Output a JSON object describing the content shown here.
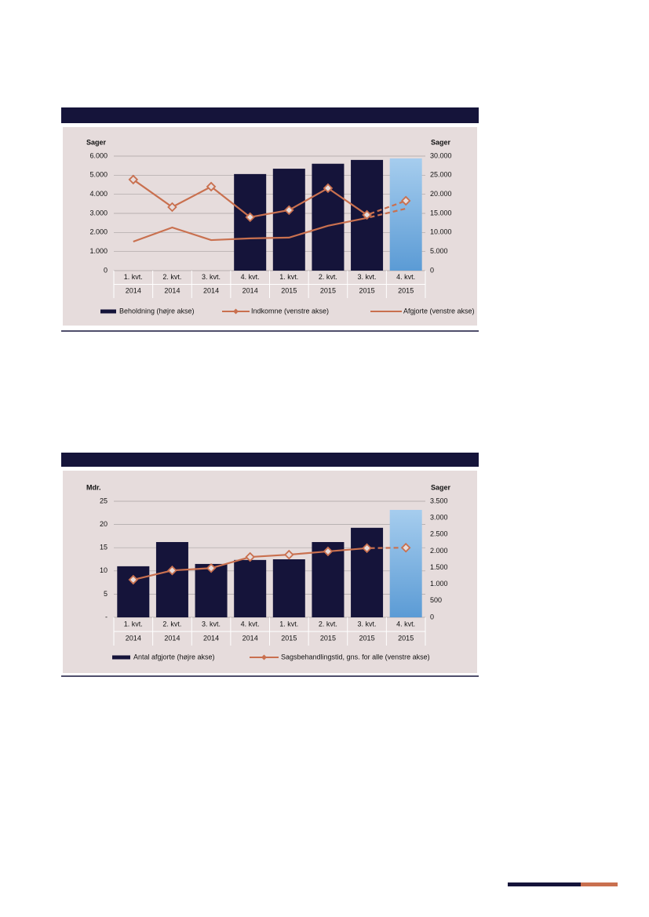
{
  "chart_data": [
    {
      "type": "bar_line",
      "categories": [
        [
          "1. kvt.",
          "2014"
        ],
        [
          "2. kvt.",
          "2014"
        ],
        [
          "3. kvt.",
          "2014"
        ],
        [
          "4. kvt.",
          "2014"
        ],
        [
          "1. kvt.",
          "2015"
        ],
        [
          "2. kvt.",
          "2015"
        ],
        [
          "3. kvt.",
          "2015"
        ],
        [
          "4. kvt.",
          "2015"
        ]
      ],
      "ylabel": "Sager",
      "y2label": "Sager",
      "ylim": [
        0,
        6000
      ],
      "yticks": [
        0,
        {
          "value": 1000,
          "label": "1.000"
        },
        {
          "value": 2000,
          "label": "2.000"
        },
        {
          "value": 3000,
          "label": "3.000"
        },
        {
          "value": 4000,
          "label": "4.000"
        },
        {
          "value": 5000,
          "label": "5.000"
        },
        {
          "value": 6000,
          "label": "6.000"
        }
      ],
      "y2lim": [
        0,
        30000
      ],
      "y2ticks": [
        0,
        {
          "value": 5000,
          "label": "5.000"
        },
        {
          "value": 10000,
          "label": "10.000"
        },
        {
          "value": 15000,
          "label": "15.000"
        },
        {
          "value": 20000,
          "label": "20.000"
        },
        {
          "value": 25000,
          "label": "25.000"
        },
        {
          "value": 30000,
          "label": "30.000"
        }
      ],
      "grid": true,
      "series": [
        {
          "name": "Beholdning (højre akse)",
          "type": "bar",
          "axis": "y2",
          "color": "#15143a",
          "colors": [
            "#15143a",
            "#15143a",
            "#15143a",
            "#15143a",
            "#15143a",
            "#15143a",
            "#15143a",
            "#6aa5dc"
          ],
          "values": [
            null,
            null,
            null,
            25300,
            26700,
            28000,
            29000,
            29400
          ]
        },
        {
          "name": "Indkomne (venstre akse)",
          "type": "line",
          "axis": "y",
          "color": "#c9704f",
          "marker": "diamond",
          "dash_last_segment": true,
          "values": [
            4770,
            3330,
            4400,
            2800,
            3170,
            4320,
            2920,
            3660
          ]
        },
        {
          "name": "Afgjorte (venstre akse)",
          "type": "line",
          "axis": "y",
          "color": "#c9704f",
          "marker": "none",
          "dash_last_segment": true,
          "values": [
            1520,
            2260,
            1600,
            1690,
            1730,
            2350,
            2760,
            3250
          ]
        }
      ]
    },
    {
      "type": "bar_line",
      "categories": [
        [
          "1. kvt.",
          "2014"
        ],
        [
          "2. kvt.",
          "2014"
        ],
        [
          "3. kvt.",
          "2014"
        ],
        [
          "4. kvt.",
          "2014"
        ],
        [
          "1. kvt.",
          "2015"
        ],
        [
          "2. kvt.",
          "2015"
        ],
        [
          "3. kvt.",
          "2015"
        ],
        [
          "4. kvt.",
          "2015"
        ]
      ],
      "ylabel": "Mdr.",
      "y2label": "Sager",
      "ylim": [
        0,
        25
      ],
      "yticks": [
        {
          "value": 0,
          "label": "-"
        },
        5,
        10,
        15,
        20,
        25
      ],
      "y2lim": [
        0,
        3500
      ],
      "y2ticks": [
        0,
        500,
        {
          "value": 1000,
          "label": "1.000"
        },
        {
          "value": 1500,
          "label": "1.500"
        },
        {
          "value": 2000,
          "label": "2.000"
        },
        {
          "value": 2500,
          "label": "2.500"
        },
        {
          "value": 3000,
          "label": "3.000"
        },
        {
          "value": 3500,
          "label": "3.500"
        }
      ],
      "grid": true,
      "series": [
        {
          "name": "Antal afgjorte (højre akse)",
          "type": "bar",
          "axis": "y2",
          "color": "#15143a",
          "colors": [
            "#15143a",
            "#15143a",
            "#15143a",
            "#15143a",
            "#15143a",
            "#15143a",
            "#15143a",
            "#6aa5dc"
          ],
          "values": [
            1540,
            2270,
            1610,
            1730,
            1750,
            2270,
            2700,
            3240
          ]
        },
        {
          "name": "Sagsbehandlingstid, gns. for alle (venstre akse)",
          "type": "line",
          "axis": "y",
          "color": "#c9704f",
          "marker": "diamond",
          "dash_last_segment": true,
          "values": [
            8.1,
            10.1,
            10.6,
            13.0,
            13.5,
            14.2,
            14.9,
            15.0
          ]
        }
      ]
    }
  ]
}
